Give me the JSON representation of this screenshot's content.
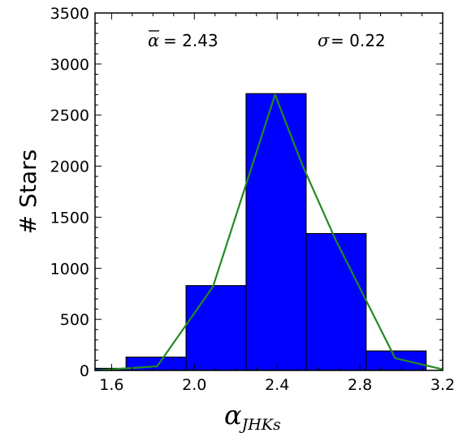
{
  "chart_data": {
    "type": "bar",
    "bins": [
      {
        "x0": 1.52,
        "x1": 1.67,
        "value": 20
      },
      {
        "x0": 1.67,
        "x1": 1.96,
        "value": 130
      },
      {
        "x0": 1.96,
        "x1": 2.25,
        "value": 830
      },
      {
        "x0": 2.25,
        "x1": 2.54,
        "value": 2710
      },
      {
        "x0": 2.54,
        "x1": 2.83,
        "value": 1340
      },
      {
        "x0": 2.83,
        "x1": 3.12,
        "value": 190
      }
    ],
    "fit_line": {
      "x": [
        1.52,
        1.82,
        2.09,
        2.39,
        2.52,
        2.68,
        2.97,
        3.2
      ],
      "y": [
        0,
        40,
        820,
        2700,
        2020,
        1290,
        120,
        10
      ]
    },
    "xlabel_main": "α",
    "xlabel_sub": "JHKs",
    "ylabel": "# Stars",
    "xlim": [
      1.52,
      3.2
    ],
    "ylim": [
      0,
      3500
    ],
    "xticks": [
      "1.6",
      "2.0",
      "2.4",
      "2.8",
      "3.2"
    ],
    "xtick_values": [
      1.6,
      2.0,
      2.4,
      2.8,
      3.2
    ],
    "yticks": [
      "0",
      "500",
      "1000",
      "1500",
      "2000",
      "2500",
      "3000",
      "3500"
    ],
    "ytick_values": [
      0,
      500,
      1000,
      1500,
      2000,
      2500,
      3000,
      3500
    ],
    "annotations": {
      "mean_symbol": "α",
      "mean_text": "= 2.43",
      "sigma_symbol": "σ",
      "sigma_text": "=  0.22"
    },
    "bar_color": "#0000ff",
    "line_color": "#228b22"
  }
}
